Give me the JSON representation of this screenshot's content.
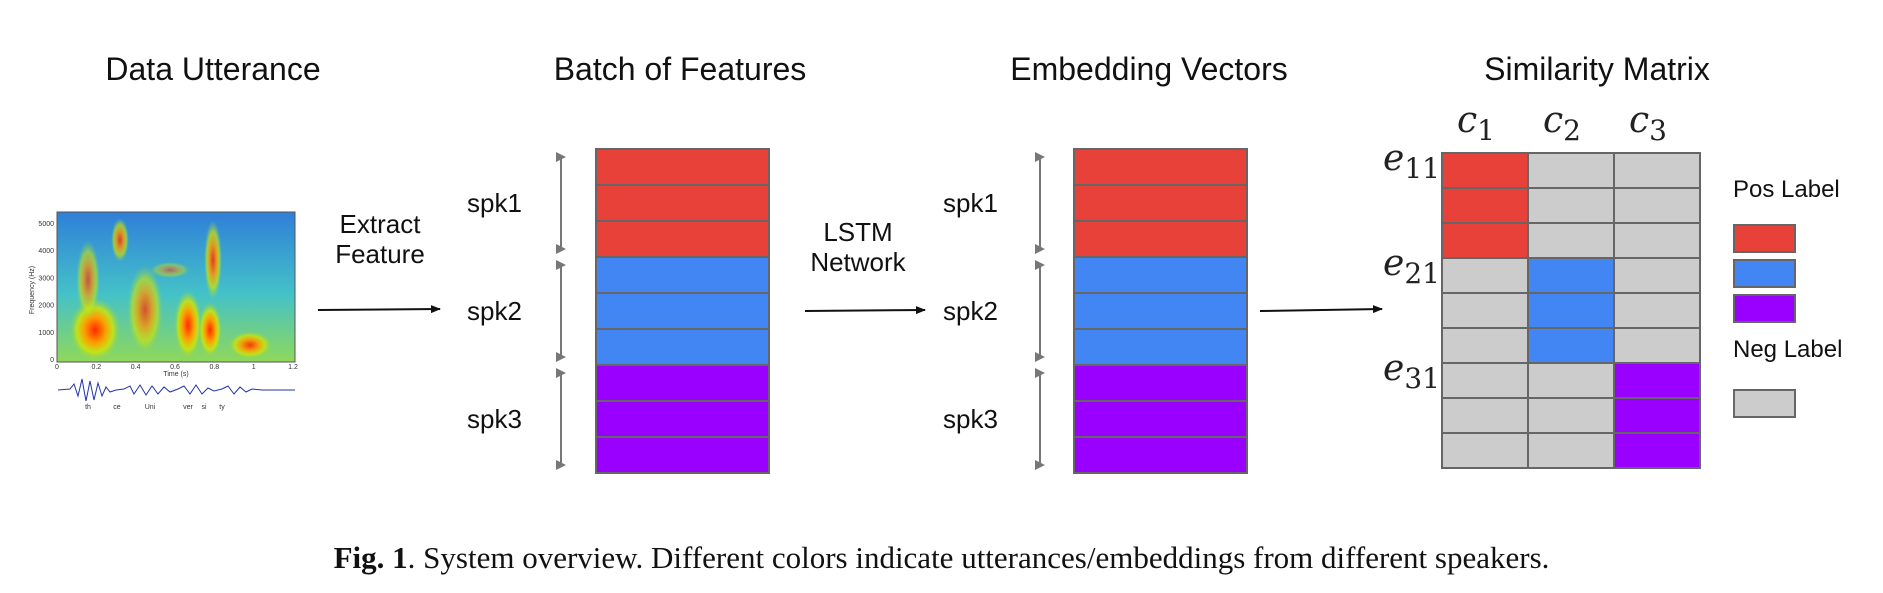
{
  "headings": {
    "data_utterance": "Data Utterance",
    "batch_of_features": "Batch of Features",
    "embedding_vectors": "Embedding Vectors",
    "similarity_matrix": "Similarity Matrix"
  },
  "arrows": {
    "extract_line1": "Extract",
    "extract_line2": "Feature",
    "lstm_line1": "LSTM",
    "lstm_line2": "Network"
  },
  "speakers": [
    "spk1",
    "spk2",
    "spk3"
  ],
  "utterances_per_speaker": 3,
  "colors": {
    "spk1": "#e8413a",
    "spk2": "#4286f4",
    "spk3": "#9900ff",
    "negative": "#cccccc",
    "border": "#666666"
  },
  "matrix": {
    "columns": [
      {
        "base": "c",
        "sub": "1"
      },
      {
        "base": "c",
        "sub": "2"
      },
      {
        "base": "c",
        "sub": "3"
      }
    ],
    "rows": [
      {
        "base": "e",
        "sub": "11"
      },
      {
        "base": "e",
        "sub": "21"
      },
      {
        "base": "e",
        "sub": "31"
      }
    ]
  },
  "legend": {
    "pos_label": "Pos Label",
    "neg_label": "Neg Label"
  },
  "spectrogram": {
    "y_ticks": [
      "5000",
      "4000",
      "3000",
      "2000",
      "1000",
      "0"
    ],
    "x_ticks": [
      "0",
      "0.2",
      "0.4",
      "0.6",
      "0.8",
      "1",
      "1.2"
    ],
    "y_axis_label": "Frequency (Hz)",
    "x_axis_label": "Time (s)",
    "phonemes": [
      "th",
      "ce",
      "Uni",
      "ver",
      "si",
      "ty"
    ]
  },
  "caption": {
    "label": "Fig. 1",
    "text": ".  System overview. Different colors indicate utterances/embeddings from different speakers."
  }
}
